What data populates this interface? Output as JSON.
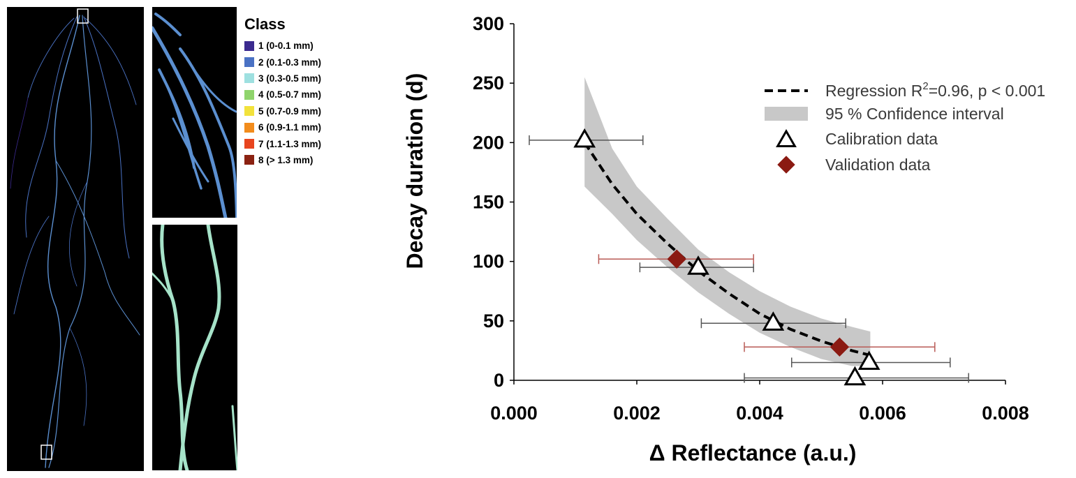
{
  "class_legend": {
    "title": "Class",
    "items": [
      {
        "label": "1 (0-0.1 mm)",
        "color": "#3b2a8f"
      },
      {
        "label": "2 (0.1-0.3 mm)",
        "color": "#4a72c4"
      },
      {
        "label": "3 (0.3-0.5 mm)",
        "color": "#9ee0e0"
      },
      {
        "label": "4 (0.5-0.7 mm)",
        "color": "#8fd46c"
      },
      {
        "label": "5 (0.7-0.9 mm)",
        "color": "#f2e23c"
      },
      {
        "label": "6 (0.9-1.1 mm)",
        "color": "#f28c1c"
      },
      {
        "label": "7 (1.1-1.3 mm)",
        "color": "#e8451e"
      },
      {
        "label": "8 (> 1.3 mm)",
        "color": "#8b2212"
      }
    ]
  },
  "root_colors": {
    "fine": "#5b8fd0",
    "medium": "#a6e3c9"
  },
  "chart_data": {
    "type": "scatter",
    "xlabel": "Δ Reflectance (a.u.)",
    "ylabel": "Decay duration (d)",
    "xlim": [
      0.0,
      0.008
    ],
    "ylim": [
      0,
      300
    ],
    "xticks": [
      "0.000",
      "0.002",
      "0.004",
      "0.006",
      "0.008"
    ],
    "yticks": [
      "0",
      "50",
      "100",
      "150",
      "200",
      "250",
      "300"
    ],
    "legend_position": "top-right",
    "legend": {
      "regression": "Regression R",
      "regression_sup": "2",
      "regression_rest": "=0.96, p < 0.001",
      "ci": "95 % Confidence interval",
      "calibration": "Calibration data",
      "validation": "Validation data"
    },
    "series": [
      {
        "name": "Calibration data",
        "marker": "triangle",
        "color": "#000000",
        "points": [
          {
            "x": 0.00115,
            "y": 202,
            "xerr_low": 0.00025,
            "xerr_high": 0.0021
          },
          {
            "x": 0.003,
            "y": 95,
            "xerr_low": 0.00205,
            "xerr_high": 0.0039
          },
          {
            "x": 0.00422,
            "y": 48,
            "xerr_low": 0.00305,
            "xerr_high": 0.0054
          },
          {
            "x": 0.00578,
            "y": 15,
            "xerr_low": 0.00452,
            "xerr_high": 0.0071
          },
          {
            "x": 0.00555,
            "y": 2,
            "xerr_low": 0.00375,
            "xerr_high": 0.0074
          }
        ]
      },
      {
        "name": "Validation data",
        "marker": "diamond",
        "color": "#8b1a12",
        "points": [
          {
            "x": 0.00265,
            "y": 102,
            "xerr_low": 0.00138,
            "xerr_high": 0.0039
          },
          {
            "x": 0.0053,
            "y": 28,
            "xerr_low": 0.00375,
            "xerr_high": 0.00685
          }
        ]
      }
    ],
    "regression_curve": {
      "x": [
        0.00115,
        0.0016,
        0.002,
        0.0025,
        0.003,
        0.0035,
        0.004,
        0.0045,
        0.005,
        0.0055,
        0.0058
      ],
      "y": [
        200,
        165,
        140,
        115,
        92,
        73,
        56,
        43,
        33,
        25,
        21
      ]
    },
    "confidence_band": {
      "x": [
        0.00115,
        0.0016,
        0.002,
        0.0025,
        0.003,
        0.0035,
        0.004,
        0.0045,
        0.005,
        0.0055,
        0.0058
      ],
      "upper": [
        255,
        195,
        163,
        136,
        110,
        91,
        75,
        62,
        52,
        45,
        41
      ],
      "lower": [
        163,
        140,
        118,
        95,
        74,
        56,
        40,
        28,
        18,
        12,
        12
      ]
    },
    "colors": {
      "band": "#c8c8c8",
      "calibration_err": "#555555",
      "validation_err": "#b85a55",
      "axis": "#000000"
    }
  }
}
